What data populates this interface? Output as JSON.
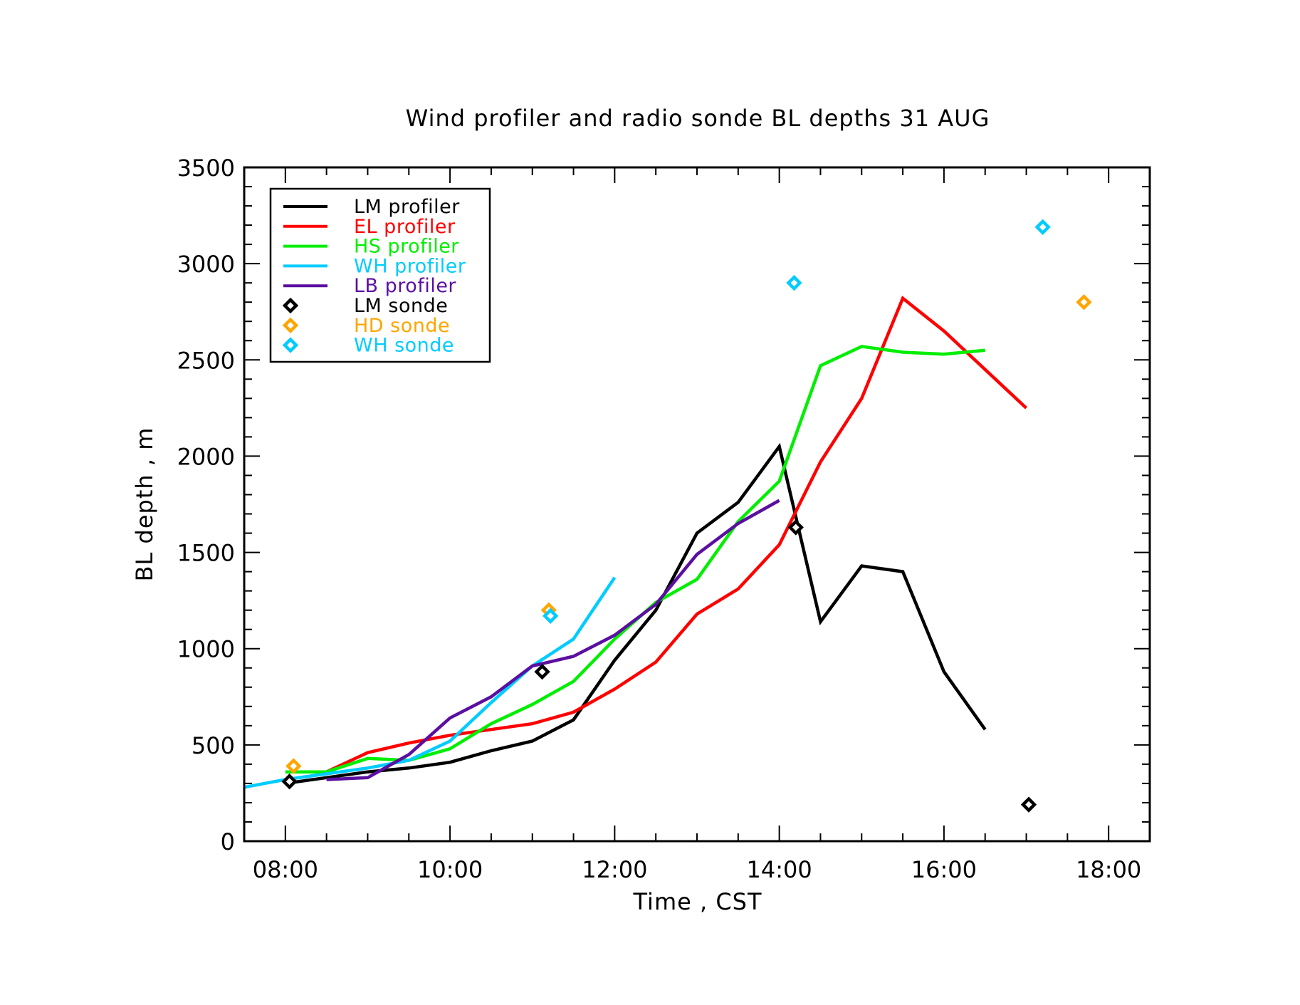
{
  "chart_data": {
    "type": "line",
    "title": "Wind profiler and radio sonde BL depths  31 AUG",
    "xlabel": "Time , CST",
    "ylabel": "BL depth , m",
    "xlim": [
      7.5,
      18.5
    ],
    "ylim": [
      0,
      3500
    ],
    "x_ticks": [
      8,
      10,
      12,
      14,
      16,
      18
    ],
    "x_tick_labels": [
      "08:00",
      "10:00",
      "12:00",
      "14:00",
      "16:00",
      "18:00"
    ],
    "y_ticks": [
      0,
      500,
      1000,
      1500,
      2000,
      2500,
      3000,
      3500
    ],
    "y_tick_labels": [
      "0",
      "500",
      "1000",
      "1500",
      "2000",
      "2500",
      "3000",
      "3500"
    ],
    "legend_position": "top-left",
    "series": [
      {
        "name": "LM profiler",
        "kind": "line",
        "color": "#000000",
        "x": [
          8.0,
          8.5,
          9.0,
          9.5,
          10.0,
          10.5,
          11.0,
          11.5,
          12.0,
          12.5,
          13.0,
          13.5,
          14.0,
          14.5,
          15.0,
          15.5,
          16.0,
          16.5
        ],
        "y": [
          300,
          330,
          360,
          380,
          410,
          470,
          520,
          630,
          940,
          1200,
          1600,
          1760,
          2050,
          1140,
          1430,
          1400,
          880,
          580
        ]
      },
      {
        "name": "EL profiler",
        "kind": "line",
        "color": "#ff0000",
        "x": [
          8.5,
          9.0,
          9.5,
          10.0,
          10.5,
          11.0,
          11.5,
          12.0,
          12.5,
          13.0,
          13.5,
          14.0,
          14.5,
          15.0,
          15.5,
          16.0,
          16.5,
          17.0
        ],
        "y": [
          360,
          460,
          510,
          550,
          580,
          610,
          670,
          790,
          930,
          1180,
          1310,
          1540,
          1970,
          2300,
          2820,
          2650,
          2450,
          2250
        ]
      },
      {
        "name": "HS profiler",
        "kind": "line",
        "color": "#00ee00",
        "x": [
          8.0,
          8.5,
          9.0,
          9.5,
          10.0,
          10.5,
          11.0,
          11.5,
          12.0,
          12.5,
          13.0,
          13.5,
          14.0,
          14.5,
          15.0,
          15.5,
          16.0,
          16.5
        ],
        "y": [
          360,
          360,
          430,
          420,
          480,
          610,
          710,
          830,
          1050,
          1240,
          1360,
          1660,
          1870,
          2470,
          2570,
          2540,
          2530,
          2550
        ]
      },
      {
        "name": "WH profiler",
        "kind": "line",
        "color": "#00ccff",
        "x": [
          7.5,
          8.0,
          8.5,
          9.0,
          9.5,
          10.0,
          10.5,
          11.0,
          11.5,
          12.0
        ],
        "y": [
          280,
          320,
          350,
          380,
          420,
          520,
          720,
          910,
          1050,
          1370
        ]
      },
      {
        "name": "LB profiler",
        "kind": "line",
        "color": "#5b0fa0",
        "x": [
          8.5,
          9.0,
          9.5,
          10.0,
          10.5,
          11.0,
          11.5,
          12.0,
          12.5,
          13.0,
          13.5,
          14.0
        ],
        "y": [
          320,
          330,
          450,
          640,
          750,
          910,
          960,
          1070,
          1230,
          1490,
          1650,
          1770
        ]
      },
      {
        "name": "LM sonde",
        "kind": "marker",
        "color": "#000000",
        "x": [
          8.05,
          11.12,
          14.2,
          17.03
        ],
        "y": [
          310,
          880,
          1630,
          190
        ]
      },
      {
        "name": "HD sonde",
        "kind": "marker",
        "color": "#ffa500",
        "x": [
          8.1,
          11.2,
          17.7
        ],
        "y": [
          390,
          1200,
          2800
        ]
      },
      {
        "name": "WH sonde",
        "kind": "marker",
        "color": "#00ccff",
        "x": [
          11.22,
          14.18,
          17.2
        ],
        "y": [
          1170,
          2900,
          3190
        ]
      }
    ]
  }
}
